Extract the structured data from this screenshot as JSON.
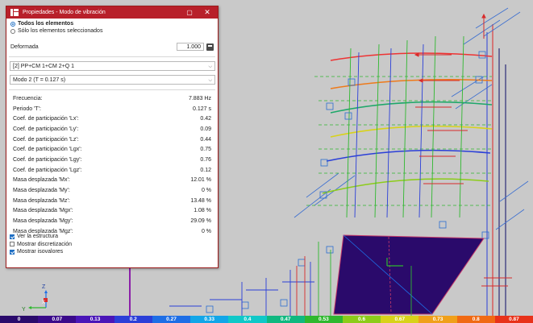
{
  "dialog": {
    "title": "Propiedades - Modo de vibración",
    "window_buttons": {
      "restore": "▢",
      "close": "✕"
    },
    "scope": {
      "all_label": "Todos los elementos",
      "selected_label": "Sólo los elementos seleccionados",
      "selected": "all"
    },
    "deformed": {
      "label": "Deformada",
      "value": "1.000"
    },
    "combination_select": {
      "value": "[2] PP+CM 1+CM 2+Q 1"
    },
    "mode_select": {
      "value": "Modo 2 (T = 0.127 s)"
    },
    "properties": [
      {
        "label": "Frecuencia:",
        "value": "7.883  Hz"
      },
      {
        "label": "Periodo 'T':",
        "value": "0.127 s"
      },
      {
        "label": "Coef. de participación 'Lx':",
        "value": "0.42"
      },
      {
        "label": "Coef. de participación 'Ly':",
        "value": "0.09"
      },
      {
        "label": "Coef. de participación 'Lz':",
        "value": "0.44"
      },
      {
        "label": "Coef. de participación 'Lgx':",
        "value": "0.75"
      },
      {
        "label": "Coef. de participación 'Lgy':",
        "value": "0.76"
      },
      {
        "label": "Coef. de participación 'Lgz':",
        "value": "0.12"
      },
      {
        "label": "Masa desplazada 'Mx':",
        "value": "12.01 %"
      },
      {
        "label": "Masa desplazada 'My':",
        "value": "0 %"
      },
      {
        "label": "Masa desplazada 'Mz':",
        "value": "13.48 %"
      },
      {
        "label": "Masa desplazada 'Mgx':",
        "value": "1.08 %"
      },
      {
        "label": "Masa desplazada 'Mgy':",
        "value": "29.09 %"
      },
      {
        "label": "Masa desplazada 'Mgz':",
        "value": "0 %"
      }
    ],
    "checks": [
      {
        "label": "Ver la estructura",
        "checked": true
      },
      {
        "label": "Mostrar discretización",
        "checked": false
      },
      {
        "label": "Mostrar isovalores",
        "checked": true
      }
    ]
  },
  "axes": {
    "z": "Z",
    "y": "Y",
    "x": "X"
  },
  "color_scale": {
    "labels": [
      "0",
      "0.07",
      "0.13",
      "0.2",
      "0.27",
      "0.33",
      "0.4",
      "0.47",
      "0.53",
      "0.6",
      "0.67",
      "0.73",
      "0.8",
      "0.87"
    ],
    "colors": [
      "#2a0a6b",
      "#3a0a8a",
      "#4a16b8",
      "#2b3fd8",
      "#1e6ee6",
      "#12a6e8",
      "#10c8c8",
      "#10b880",
      "#2fb82f",
      "#8ccc1a",
      "#d8d21a",
      "#f0a01a",
      "#f06a14",
      "#e8321a"
    ]
  }
}
